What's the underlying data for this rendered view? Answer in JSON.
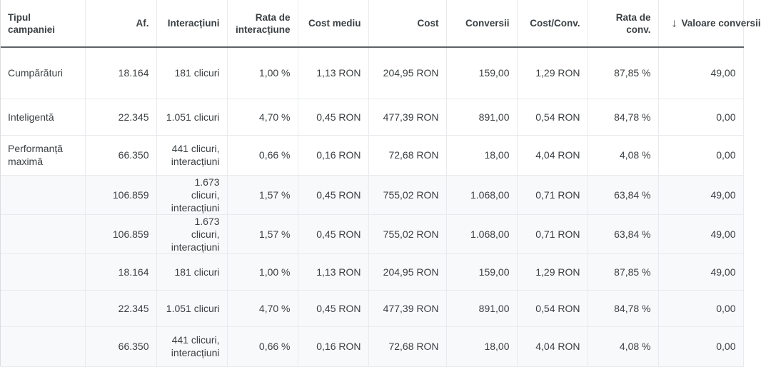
{
  "columns": [
    {
      "label": "Tipul campaniei"
    },
    {
      "label": "Af."
    },
    {
      "label": "Interacțiuni"
    },
    {
      "label": "Rata de interacțiune"
    },
    {
      "label": "Cost mediu"
    },
    {
      "label": "Cost"
    },
    {
      "label": "Conversii"
    },
    {
      "label": "Cost/Conv."
    },
    {
      "label": "Rata de conv."
    },
    {
      "label": "Valoare conversii",
      "sort_icon": "arrow-down-icon",
      "sort_glyph": "↓"
    }
  ],
  "rows": [
    {
      "type": "Cumpărături",
      "impr": "18.164",
      "interactions": "181 clicuri",
      "rate": "1,00 %",
      "avg_cost": "1,13 RON",
      "cost": "204,95 RON",
      "conv": "159,00",
      "cost_conv": "1,29 RON",
      "conv_rate": "87,85 %",
      "conv_value": "49,00"
    },
    {
      "type": "Inteligentă",
      "impr": "22.345",
      "interactions": "1.051 clicuri",
      "rate": "4,70 %",
      "avg_cost": "0,45 RON",
      "cost": "477,39 RON",
      "conv": "891,00",
      "cost_conv": "0,54 RON",
      "conv_rate": "84,78 %",
      "conv_value": "0,00"
    },
    {
      "type": "Performanță maximă",
      "impr": "66.350",
      "interactions": "441 clicuri, interacțiuni",
      "rate": "0,66 %",
      "avg_cost": "0,16 RON",
      "cost": "72,68 RON",
      "conv": "18,00",
      "cost_conv": "4,04 RON",
      "conv_rate": "4,08 %",
      "conv_value": "0,00"
    },
    {
      "type": "",
      "impr": "106.859",
      "interactions": "1.673 clicuri, interacțiuni",
      "rate": "1,57 %",
      "avg_cost": "0,45 RON",
      "cost": "755,02 RON",
      "conv": "1.068,00",
      "cost_conv": "0,71 RON",
      "conv_rate": "63,84 %",
      "conv_value": "49,00"
    },
    {
      "type": "",
      "impr": "106.859",
      "interactions": "1.673 clicuri, interacțiuni",
      "rate": "1,57 %",
      "avg_cost": "0,45 RON",
      "cost": "755,02 RON",
      "conv": "1.068,00",
      "cost_conv": "0,71 RON",
      "conv_rate": "63,84 %",
      "conv_value": "49,00"
    },
    {
      "type": "",
      "impr": "18.164",
      "interactions": "181 clicuri",
      "rate": "1,00 %",
      "avg_cost": "1,13 RON",
      "cost": "204,95 RON",
      "conv": "159,00",
      "cost_conv": "1,29 RON",
      "conv_rate": "87,85 %",
      "conv_value": "49,00"
    },
    {
      "type": "",
      "impr": "22.345",
      "interactions": "1.051 clicuri",
      "rate": "4,70 %",
      "avg_cost": "0,45 RON",
      "cost": "477,39 RON",
      "conv": "891,00",
      "cost_conv": "0,54 RON",
      "conv_rate": "84,78 %",
      "conv_value": "0,00"
    },
    {
      "type": "",
      "impr": "66.350",
      "interactions": "441 clicuri, interacțiuni",
      "rate": "0,66 %",
      "avg_cost": "0,16 RON",
      "cost": "72,68 RON",
      "conv": "18,00",
      "cost_conv": "4,04 RON",
      "conv_rate": "4,08 %",
      "conv_value": "0,00"
    }
  ]
}
